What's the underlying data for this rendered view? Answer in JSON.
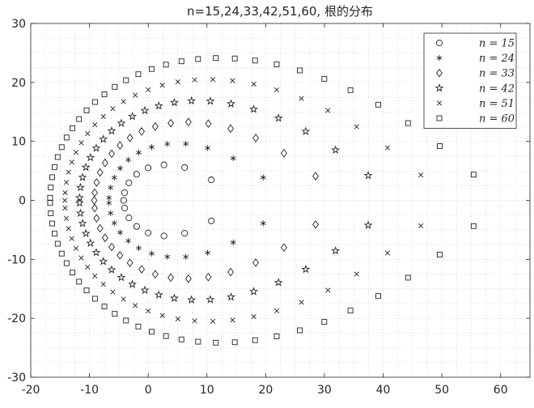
{
  "chart_data": {
    "type": "scatter",
    "title": "n=15,24,33,42,51,60, 根的分布",
    "xlabel": "",
    "ylabel": "",
    "xlim": [
      -20,
      65
    ],
    "ylim": [
      -30,
      30
    ],
    "x_ticks": [
      -20,
      -10,
      0,
      10,
      20,
      30,
      40,
      50,
      60
    ],
    "x_tick_labels": [
      "-20",
      "-10",
      "0",
      "10",
      "20",
      "30",
      "40",
      "50",
      "60"
    ],
    "y_ticks": [
      -30,
      -20,
      -10,
      0,
      10,
      20,
      30
    ],
    "y_tick_labels": [
      "-30",
      "-20",
      "-10",
      "0",
      "10",
      "20",
      "30"
    ],
    "grid": "minor-dotted",
    "legend_position": "top-right",
    "series": [
      {
        "name": "n = 15",
        "n": 15,
        "marker": "circle"
      },
      {
        "name": "n = 24",
        "n": 24,
        "marker": "asterisk"
      },
      {
        "name": "n = 33",
        "n": 33,
        "marker": "diamond"
      },
      {
        "name": "n = 42",
        "n": 42,
        "marker": "star"
      },
      {
        "name": "n = 51",
        "n": 51,
        "marker": "cross"
      },
      {
        "name": "n = 60",
        "n": 60,
        "marker": "square"
      }
    ]
  }
}
